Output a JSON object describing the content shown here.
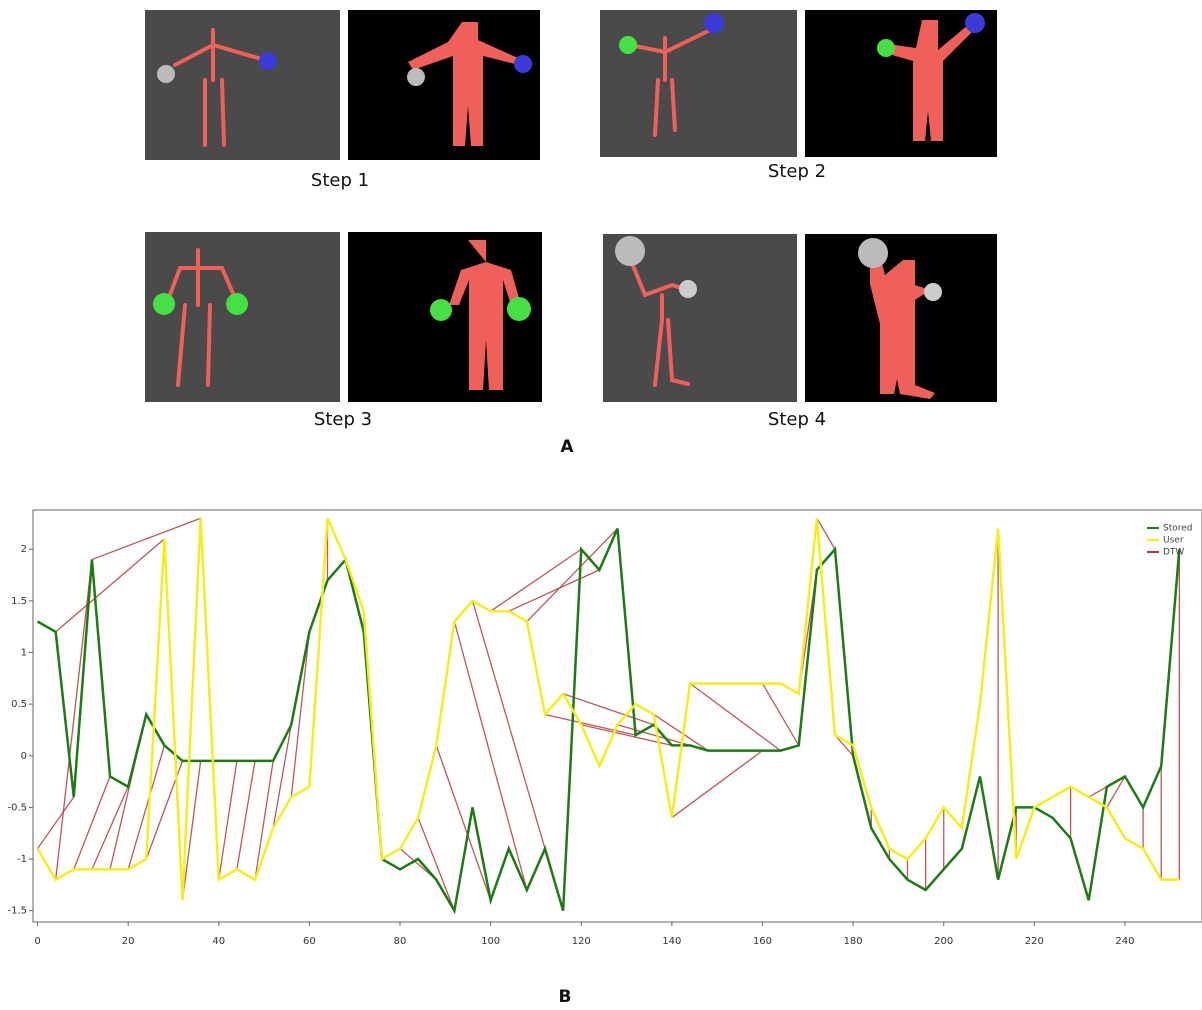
{
  "panel_a": {
    "steps": [
      "Step 1",
      "Step 2",
      "Step 3",
      "Step 4"
    ],
    "label": "A"
  },
  "panel_b_label": "B",
  "chart_data": {
    "type": "line",
    "x": [
      0,
      4,
      8,
      12,
      16,
      20,
      24,
      28,
      32,
      36,
      40,
      44,
      48,
      52,
      56,
      60,
      64,
      68,
      72,
      76,
      80,
      84,
      88,
      92,
      96,
      100,
      104,
      108,
      112,
      116,
      120,
      124,
      128,
      132,
      136,
      140,
      144,
      148,
      152,
      156,
      160,
      164,
      168,
      172,
      176,
      180,
      184,
      188,
      192,
      196,
      200,
      204,
      208,
      212,
      216,
      220,
      224,
      228,
      232,
      236,
      240,
      244,
      248,
      252
    ],
    "series": [
      {
        "name": "Stored",
        "color": "#1e7a14",
        "values": [
          1.3,
          1.2,
          -0.4,
          1.9,
          -0.2,
          -0.3,
          0.4,
          0.1,
          -0.05,
          -0.05,
          -0.05,
          -0.05,
          -0.05,
          -0.05,
          0.3,
          1.2,
          1.7,
          1.9,
          1.2,
          -1.0,
          -1.1,
          -1.0,
          -1.2,
          -1.5,
          -0.5,
          -1.4,
          -0.9,
          -1.3,
          -0.9,
          -1.5,
          2.0,
          1.8,
          2.2,
          0.2,
          0.3,
          0.1,
          0.1,
          0.05,
          0.05,
          0.05,
          0.05,
          0.05,
          0.1,
          1.8,
          2.0,
          0.0,
          -0.7,
          -1.0,
          -1.2,
          -1.3,
          -1.1,
          -0.9,
          -0.2,
          -1.2,
          -0.5,
          -0.5,
          -0.6,
          -0.8,
          -1.4,
          -0.3,
          -0.2,
          -0.5,
          -0.1,
          2.0
        ]
      },
      {
        "name": "User",
        "color": "#f5ee1a",
        "values": [
          -0.9,
          -1.2,
          -1.1,
          -1.1,
          -1.1,
          -1.1,
          -1.0,
          2.1,
          -1.4,
          2.3,
          -1.2,
          -1.1,
          -1.2,
          -0.7,
          -0.4,
          -0.3,
          2.3,
          1.9,
          1.4,
          -1.0,
          -0.9,
          -0.6,
          0.1,
          1.3,
          1.5,
          1.4,
          1.4,
          1.3,
          0.4,
          0.6,
          0.3,
          -0.1,
          0.3,
          0.5,
          0.4,
          -0.6,
          0.7,
          0.7,
          0.7,
          0.7,
          0.7,
          0.7,
          0.6,
          2.3,
          0.2,
          0.1,
          -0.5,
          -0.9,
          -1.0,
          -0.8,
          -0.5,
          -0.7,
          0.5,
          2.2,
          -1.0,
          -0.5,
          -0.4,
          -0.3,
          -0.4,
          -0.5,
          -0.8,
          -0.9,
          -1.2,
          -1.2
        ]
      },
      {
        "name": "DTW",
        "color": "#b03a3a",
        "links": [
          [
            0,
            8
          ],
          [
            4,
            12
          ],
          [
            8,
            16
          ],
          [
            12,
            20
          ],
          [
            16,
            24
          ],
          [
            20,
            28
          ],
          [
            24,
            32
          ],
          [
            28,
            4
          ],
          [
            32,
            36
          ],
          [
            36,
            12
          ],
          [
            40,
            44
          ],
          [
            44,
            48
          ],
          [
            48,
            52
          ],
          [
            52,
            56
          ],
          [
            56,
            60
          ],
          [
            64,
            64
          ],
          [
            68,
            68
          ],
          [
            72,
            72
          ],
          [
            76,
            76
          ],
          [
            80,
            88
          ],
          [
            84,
            92
          ],
          [
            88,
            100
          ],
          [
            92,
            108
          ],
          [
            96,
            116
          ],
          [
            100,
            120
          ],
          [
            104,
            124
          ],
          [
            108,
            128
          ],
          [
            112,
            132
          ],
          [
            116,
            136
          ],
          [
            120,
            140
          ],
          [
            128,
            144
          ],
          [
            136,
            148
          ],
          [
            140,
            160
          ],
          [
            144,
            164
          ],
          [
            160,
            168
          ],
          [
            168,
            172
          ],
          [
            172,
            176
          ],
          [
            176,
            180
          ],
          [
            184,
            184
          ],
          [
            188,
            188
          ],
          [
            192,
            192
          ],
          [
            196,
            196
          ],
          [
            200,
            200
          ],
          [
            212,
            212
          ],
          [
            216,
            216
          ],
          [
            220,
            220
          ],
          [
            228,
            228
          ],
          [
            232,
            236
          ],
          [
            236,
            240
          ],
          [
            244,
            244
          ],
          [
            248,
            248
          ],
          [
            252,
            252
          ]
        ]
      }
    ],
    "xlim": [
      -1,
      257
    ],
    "ylim": [
      -1.61,
      2.38
    ],
    "xticks": [
      0,
      20,
      40,
      60,
      80,
      100,
      120,
      140,
      160,
      180,
      200,
      220,
      240
    ],
    "yticks": [
      -1.5,
      -1,
      -0.5,
      0,
      0.5,
      1,
      1.5,
      2
    ],
    "legend": "top-right"
  }
}
